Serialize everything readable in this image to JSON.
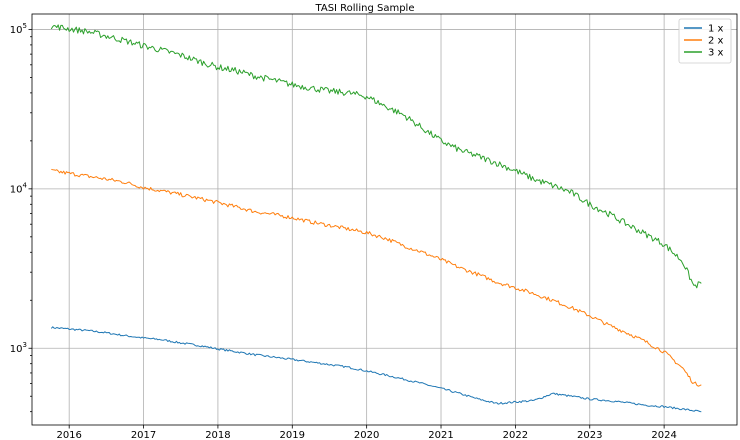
{
  "chart_data": {
    "type": "line",
    "title": "TASI Rolling Sample",
    "xlabel": "",
    "ylabel": "",
    "yscale": "log",
    "ylim": [
      330,
      125000
    ],
    "xlim": [
      2015.5,
      2024.98
    ],
    "grid": true,
    "legend_position": "top-right",
    "x_ticks": [
      "2016",
      "2017",
      "2018",
      "2019",
      "2020",
      "2021",
      "2022",
      "2023",
      "2024"
    ],
    "x_tick_values": [
      2016,
      2017,
      2018,
      2019,
      2020,
      2021,
      2022,
      2023,
      2024
    ],
    "y_ticks": [
      {
        "value": 1000,
        "base": "10",
        "exp": "3"
      },
      {
        "value": 10000,
        "base": "10",
        "exp": "4"
      },
      {
        "value": 100000,
        "base": "10",
        "exp": "5"
      }
    ],
    "series": [
      {
        "name": "1 x",
        "color": "#1f77b4",
        "x": [
          2015.76,
          2016.0,
          2016.25,
          2016.5,
          2016.75,
          2017.0,
          2017.25,
          2017.5,
          2017.75,
          2018.0,
          2018.25,
          2018.5,
          2018.75,
          2019.0,
          2019.25,
          2019.5,
          2019.75,
          2020.0,
          2020.25,
          2020.5,
          2020.75,
          2021.0,
          2021.25,
          2021.5,
          2021.75,
          2022.0,
          2022.25,
          2022.5,
          2022.75,
          2023.0,
          2023.25,
          2023.5,
          2023.75,
          2024.0,
          2024.25,
          2024.5
        ],
        "values": [
          1350,
          1320,
          1290,
          1250,
          1200,
          1160,
          1130,
          1080,
          1040,
          990,
          950,
          910,
          880,
          850,
          820,
          790,
          760,
          720,
          680,
          640,
          600,
          560,
          520,
          480,
          450,
          460,
          470,
          520,
          500,
          480,
          470,
          455,
          440,
          430,
          415,
          400
        ]
      },
      {
        "name": "2 x",
        "color": "#ff7f0e",
        "x": [
          2015.76,
          2016.0,
          2016.25,
          2016.5,
          2016.75,
          2017.0,
          2017.25,
          2017.5,
          2017.75,
          2018.0,
          2018.25,
          2018.5,
          2018.75,
          2019.0,
          2019.25,
          2019.5,
          2019.75,
          2020.0,
          2020.25,
          2020.5,
          2020.75,
          2021.0,
          2021.25,
          2021.5,
          2021.75,
          2022.0,
          2022.25,
          2022.5,
          2022.75,
          2023.0,
          2023.25,
          2023.5,
          2023.75,
          2024.0,
          2024.25,
          2024.4,
          2024.5
        ],
        "values": [
          13000,
          12500,
          12000,
          11500,
          11000,
          10200,
          9700,
          9200,
          8700,
          8200,
          7700,
          7200,
          6900,
          6600,
          6200,
          5900,
          5600,
          5300,
          4900,
          4400,
          4000,
          3600,
          3200,
          2900,
          2600,
          2400,
          2200,
          2000,
          1800,
          1600,
          1400,
          1250,
          1100,
          950,
          750,
          600,
          590
        ]
      },
      {
        "name": "3 x",
        "color": "#2ca02c",
        "x": [
          2015.76,
          2016.0,
          2016.25,
          2016.5,
          2016.75,
          2017.0,
          2017.25,
          2017.5,
          2017.75,
          2018.0,
          2018.25,
          2018.5,
          2018.75,
          2019.0,
          2019.25,
          2019.5,
          2019.75,
          2020.0,
          2020.25,
          2020.5,
          2020.75,
          2021.0,
          2021.25,
          2021.5,
          2021.75,
          2022.0,
          2022.25,
          2022.5,
          2022.75,
          2023.0,
          2023.25,
          2023.5,
          2023.75,
          2024.0,
          2024.25,
          2024.4,
          2024.5
        ],
        "values": [
          105000,
          101000,
          97000,
          91000,
          85000,
          79000,
          74000,
          69000,
          63000,
          58000,
          55000,
          51000,
          48000,
          45000,
          43000,
          41000,
          40000,
          38000,
          33000,
          29000,
          24000,
          20000,
          17500,
          16000,
          14500,
          13000,
          11500,
          10500,
          9500,
          8000,
          7000,
          6000,
          5200,
          4500,
          3500,
          2450,
          2550
        ]
      }
    ]
  }
}
